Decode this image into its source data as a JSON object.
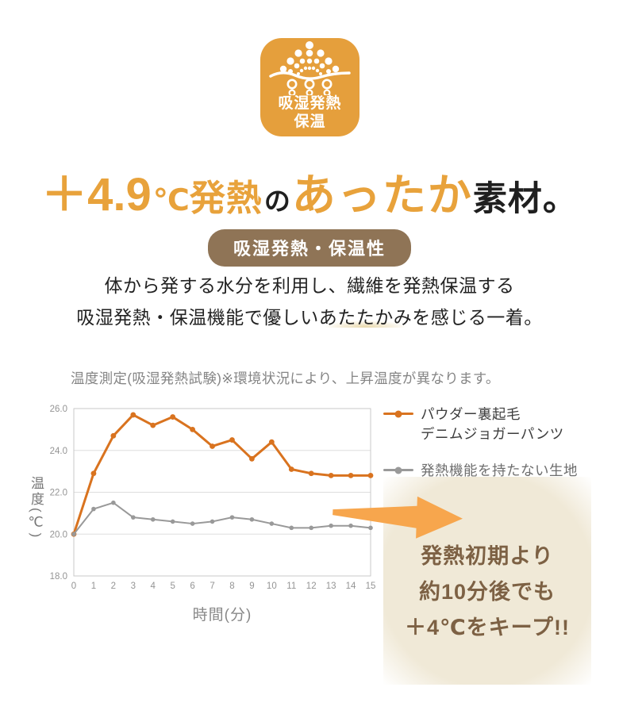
{
  "icon": {
    "label_line1": "吸湿発熱",
    "label_line2": "保温"
  },
  "headline": {
    "temp": "＋4.9",
    "unit": "℃",
    "word1": "発熱",
    "particle": "の",
    "word2": "あったか",
    "word3": "素材。"
  },
  "badge": {
    "label": "吸湿発熱・保温性"
  },
  "body": {
    "line1": "体から発する水分を利用し、繊維を発熱保温する",
    "line2_pre": "吸湿発熱・保温機能で優しい",
    "line2_highlight": "あたたかみ",
    "line2_post": "を感じる一着。"
  },
  "chart_note": "温度測定(吸湿発熱試験)※環境状況により、上昇温度が異なります。",
  "chart_data": {
    "type": "line",
    "title": "温度測定(吸湿発熱試験)",
    "xlabel": "時間(分)",
    "ylabel": "温度(℃)",
    "x": [
      0,
      1,
      2,
      3,
      4,
      5,
      6,
      7,
      8,
      9,
      10,
      11,
      12,
      13,
      14,
      15
    ],
    "xlim": [
      0,
      15
    ],
    "ylim": [
      18,
      26
    ],
    "yticks": [
      18,
      20,
      22,
      24,
      26
    ],
    "ytick_labels": [
      "18.0",
      "20.0",
      "22.0",
      "24.0",
      "26.0"
    ],
    "grid": true,
    "legend_position": "right",
    "series": [
      {
        "name": "パウダー裏起毛デニムジョガーパンツ",
        "legend_lines": [
          "パウダー裏起毛",
          "デニムジョガーパンツ"
        ],
        "color": "#D9731F",
        "values": [
          20.0,
          22.9,
          24.7,
          25.7,
          25.2,
          25.6,
          25.0,
          24.2,
          24.5,
          23.6,
          24.4,
          23.1,
          22.9,
          22.8,
          22.8,
          22.8
        ]
      },
      {
        "name": "発熱機能を持たない生地",
        "legend_lines": [
          "発熱機能を持たない生地"
        ],
        "color": "#999999",
        "values": [
          20.0,
          21.2,
          21.5,
          20.8,
          20.7,
          20.6,
          20.5,
          20.6,
          20.8,
          20.7,
          20.5,
          20.3,
          20.3,
          20.4,
          20.4,
          20.3
        ]
      }
    ]
  },
  "annotation": {
    "line1": "発熱初期より",
    "line2": "約10分後でも",
    "line3": "＋4℃をキープ!!",
    "arrow_color": "#F7A64D",
    "circle_bg": "#F0E9D7",
    "text_color": "#7D6144"
  },
  "colors": {
    "accent_orange": "#E59F3C",
    "headline_orange": "#E8A23B",
    "badge_brown": "#8F7456",
    "chart_line_orange": "#D9731F",
    "chart_line_gray": "#999999"
  }
}
